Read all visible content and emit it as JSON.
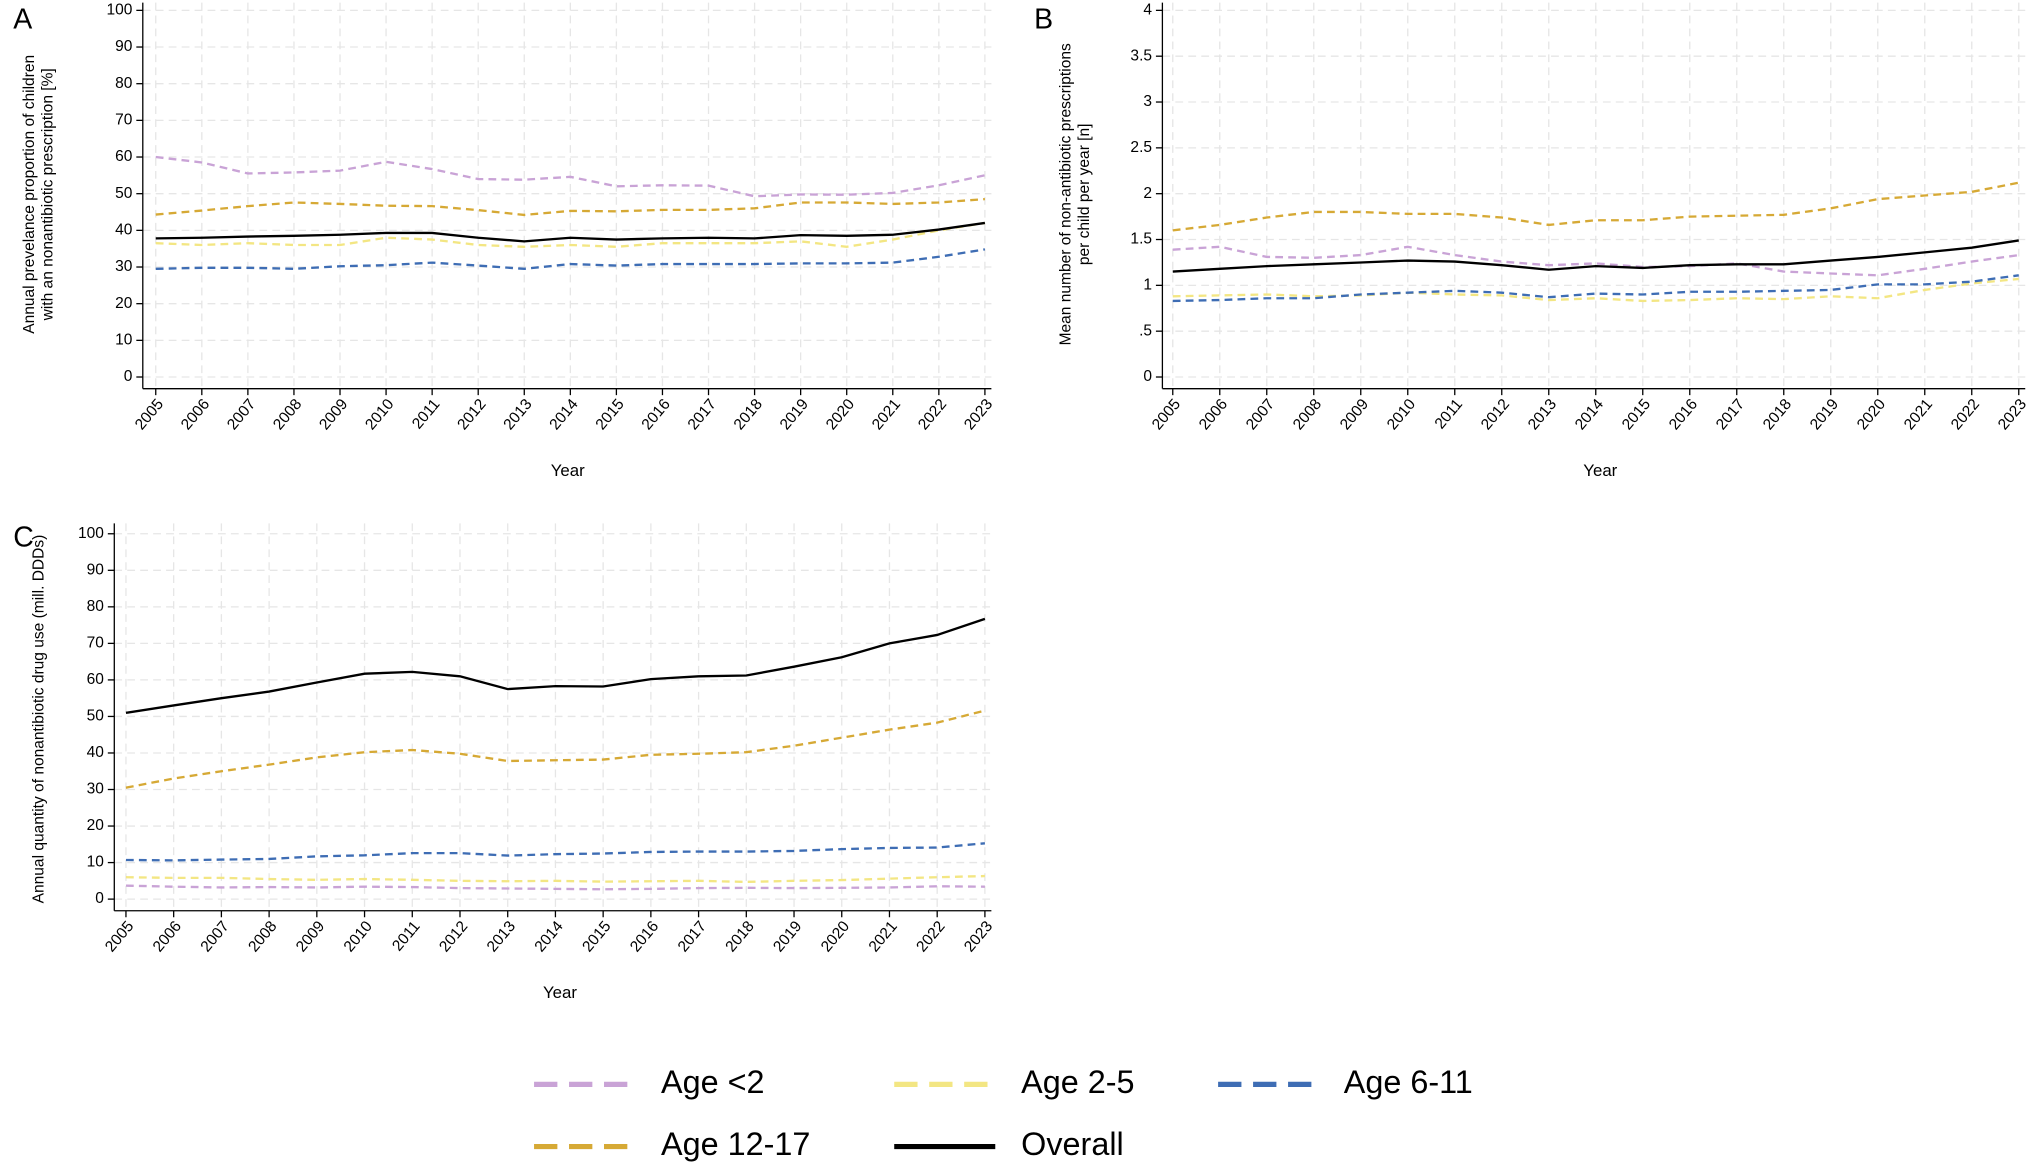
{
  "chart_data": [
    {
      "type": "line",
      "label": "A",
      "xlabel": "Year",
      "ylabel": [
        "Annual prevelance proportion of children",
        "with an nonantibiotic prescription [%]"
      ],
      "x": [
        2005,
        2006,
        2007,
        2008,
        2009,
        2010,
        2011,
        2012,
        2013,
        2014,
        2015,
        2016,
        2017,
        2018,
        2019,
        2020,
        2021,
        2022,
        2023
      ],
      "xlim": [
        2005,
        2023
      ],
      "xticks": [
        2005,
        2006,
        2007,
        2008,
        2009,
        2010,
        2011,
        2012,
        2013,
        2014,
        2015,
        2016,
        2017,
        2018,
        2019,
        2020,
        2021,
        2022,
        2023
      ],
      "ylim": [
        0,
        100
      ],
      "yticks": [
        0,
        10,
        20,
        30,
        40,
        50,
        60,
        70,
        80,
        90,
        100
      ],
      "grid": true,
      "series": [
        {
          "name": "Age <2",
          "color": "#c9a3d6",
          "dashed": true,
          "values": [
            60,
            58.5,
            55.5,
            55.8,
            56.3,
            58.7,
            56.7,
            54,
            53.8,
            54.6,
            52,
            52.3,
            52.2,
            49.3,
            49.8,
            49.7,
            50.2,
            52.3,
            55
          ]
        },
        {
          "name": "Age 2-5",
          "color": "#f3e683",
          "dashed": true,
          "values": [
            36.5,
            36,
            36.5,
            36,
            36,
            38,
            37.5,
            36,
            35.5,
            36,
            35.5,
            36.5,
            36.5,
            36.5,
            37,
            35.5,
            37.5,
            40,
            42
          ]
        },
        {
          "name": "Age 6-11",
          "color": "#3e6db4",
          "dashed": true,
          "values": [
            29.5,
            29.8,
            29.8,
            29.5,
            30.2,
            30.5,
            31.2,
            30.4,
            29.5,
            30.8,
            30.4,
            30.8,
            30.8,
            30.8,
            31,
            31,
            31.2,
            32.8,
            34.8
          ]
        },
        {
          "name": "Age 12-17",
          "color": "#d6a935",
          "dashed": true,
          "values": [
            44.3,
            45.4,
            46.6,
            47.6,
            47.2,
            46.7,
            46.6,
            45.5,
            44.2,
            45.3,
            45.2,
            45.6,
            45.6,
            46,
            47.6,
            47.6,
            47.2,
            47.6,
            48.5
          ]
        },
        {
          "name": "Overall",
          "color": "#000000",
          "dashed": false,
          "values": [
            37.8,
            38,
            38.3,
            38.5,
            38.8,
            39.3,
            39.3,
            38,
            37,
            38,
            37.5,
            37.8,
            38,
            37.8,
            38.7,
            38.5,
            38.8,
            40.2,
            42
          ]
        }
      ]
    },
    {
      "type": "line",
      "label": "B",
      "xlabel": "Year",
      "ylabel": [
        "Mean number of non-antibiotic prescriptions",
        "per child per year [n]"
      ],
      "x": [
        2005,
        2006,
        2007,
        2008,
        2009,
        2010,
        2011,
        2012,
        2013,
        2014,
        2015,
        2016,
        2017,
        2018,
        2019,
        2020,
        2021,
        2022,
        2023
      ],
      "xlim": [
        2005,
        2023
      ],
      "xticks": [
        2005,
        2006,
        2007,
        2008,
        2009,
        2010,
        2011,
        2012,
        2013,
        2014,
        2015,
        2016,
        2017,
        2018,
        2019,
        2020,
        2021,
        2022,
        2023
      ],
      "ylim": [
        0,
        4
      ],
      "yticks": [
        0,
        {
          "value": 0.5,
          "label": ".5"
        },
        1,
        1.5,
        2,
        2.5,
        3,
        3.5,
        4
      ],
      "grid": true,
      "series": [
        {
          "name": "Age <2",
          "color": "#c9a3d6",
          "dashed": true,
          "values": [
            1.39,
            1.42,
            1.31,
            1.3,
            1.33,
            1.42,
            1.33,
            1.26,
            1.22,
            1.24,
            1.2,
            1.21,
            1.24,
            1.15,
            1.13,
            1.11,
            1.18,
            1.26,
            1.33
          ]
        },
        {
          "name": "Age 2-5",
          "color": "#f3e683",
          "dashed": true,
          "values": [
            0.88,
            0.89,
            0.9,
            0.88,
            0.89,
            0.92,
            0.9,
            0.89,
            0.84,
            0.86,
            0.83,
            0.84,
            0.86,
            0.85,
            0.88,
            0.86,
            0.95,
            1.02,
            1.07
          ]
        },
        {
          "name": "Age 6-11",
          "color": "#3e6db4",
          "dashed": true,
          "values": [
            0.83,
            0.84,
            0.86,
            0.86,
            0.9,
            0.92,
            0.94,
            0.92,
            0.87,
            0.91,
            0.9,
            0.93,
            0.93,
            0.94,
            0.95,
            1.01,
            1.01,
            1.04,
            1.11
          ]
        },
        {
          "name": "Age 12-17",
          "color": "#d6a935",
          "dashed": true,
          "values": [
            1.6,
            1.66,
            1.74,
            1.8,
            1.8,
            1.78,
            1.78,
            1.74,
            1.66,
            1.71,
            1.71,
            1.75,
            1.76,
            1.77,
            1.84,
            1.94,
            1.98,
            2.02,
            2.12
          ]
        },
        {
          "name": "Overall",
          "color": "#000000",
          "dashed": false,
          "values": [
            1.15,
            1.18,
            1.21,
            1.23,
            1.25,
            1.27,
            1.26,
            1.22,
            1.17,
            1.21,
            1.19,
            1.22,
            1.23,
            1.23,
            1.27,
            1.31,
            1.36,
            1.41,
            1.49
          ]
        }
      ]
    },
    {
      "type": "line",
      "label": "C",
      "xlabel": "Year",
      "ylabel": [
        "Annual quantity of nonantibiotic drug use (mill. DDDs)"
      ],
      "x": [
        2005,
        2006,
        2007,
        2008,
        2009,
        2010,
        2011,
        2012,
        2013,
        2014,
        2015,
        2016,
        2017,
        2018,
        2019,
        2020,
        2021,
        2022,
        2023
      ],
      "xlim": [
        2005,
        2023
      ],
      "xticks": [
        2005,
        2006,
        2007,
        2008,
        2009,
        2010,
        2011,
        2012,
        2013,
        2014,
        2015,
        2016,
        2017,
        2018,
        2019,
        2020,
        2021,
        2022,
        2023
      ],
      "ylim": [
        0,
        100
      ],
      "yticks": [
        0,
        10,
        20,
        30,
        40,
        50,
        60,
        70,
        80,
        90,
        100
      ],
      "grid": true,
      "series": [
        {
          "name": "Age <2",
          "color": "#c9a3d6",
          "dashed": true,
          "values": [
            3.7,
            3.4,
            3.2,
            3.3,
            3.2,
            3.4,
            3.3,
            3,
            2.9,
            2.8,
            2.7,
            2.8,
            3,
            3.1,
            3,
            3.1,
            3.2,
            3.5,
            3.4
          ]
        },
        {
          "name": "Age 2-5",
          "color": "#f3e683",
          "dashed": true,
          "values": [
            6,
            5.8,
            5.8,
            5.5,
            5.3,
            5.5,
            5.3,
            5,
            4.9,
            5,
            4.8,
            4.9,
            5,
            4.7,
            5,
            5.2,
            5.6,
            6,
            6.3
          ]
        },
        {
          "name": "Age 6-11",
          "color": "#3e6db4",
          "dashed": true,
          "values": [
            10.7,
            10.6,
            10.8,
            11,
            11.7,
            12,
            12.6,
            12.6,
            11.9,
            12.3,
            12.5,
            12.9,
            13,
            13,
            13.2,
            13.7,
            14,
            14.1,
            15.3
          ]
        },
        {
          "name": "Age 12-17",
          "color": "#d6a935",
          "dashed": true,
          "values": [
            30.5,
            33,
            35,
            36.8,
            38.8,
            40.2,
            40.8,
            39.8,
            37.8,
            38,
            38.2,
            39.5,
            39.8,
            40.2,
            42,
            44.2,
            46.4,
            48.3,
            51.6
          ]
        },
        {
          "name": "Overall",
          "color": "#000000",
          "dashed": false,
          "values": [
            51,
            53,
            55,
            56.8,
            59.3,
            61.7,
            62.2,
            61,
            57.5,
            58.3,
            58.2,
            60.2,
            61,
            61.2,
            63.6,
            66.2,
            70,
            72.3,
            76.7
          ]
        }
      ]
    }
  ]
}
